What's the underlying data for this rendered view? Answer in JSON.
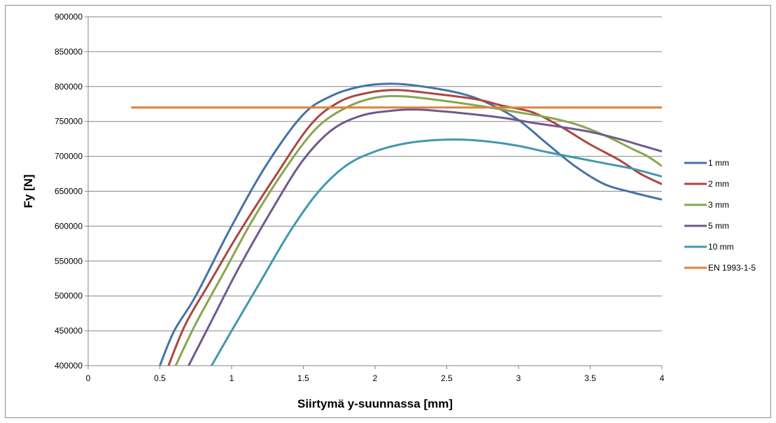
{
  "chart_data": {
    "type": "line",
    "title": "",
    "xlabel": "Siirtymä y-suunnassa [mm]",
    "ylabel": "Fy [N]",
    "xlim": [
      0,
      4
    ],
    "ylim": [
      400000,
      900000
    ],
    "x_ticks": [
      0,
      0.5,
      1,
      1.5,
      2,
      2.5,
      3,
      3.5,
      4
    ],
    "x_tick_labels": [
      "0",
      "0.5",
      "1",
      "1.5",
      "2",
      "2.5",
      "3",
      "3.5",
      "4"
    ],
    "y_ticks": [
      400000,
      450000,
      500000,
      550000,
      600000,
      650000,
      700000,
      750000,
      800000,
      850000,
      900000
    ],
    "y_tick_labels": [
      "400000",
      "450000",
      "500000",
      "550000",
      "600000",
      "650000",
      "700000",
      "750000",
      "800000",
      "850000",
      "900000"
    ],
    "grid": "horizontal",
    "legend_position": "right",
    "series": [
      {
        "name": "1 mm",
        "color": "#4572a7",
        "points": [
          [
            0.5,
            400000
          ],
          [
            0.6,
            450000
          ],
          [
            0.75,
            500000
          ],
          [
            1.0,
            600000
          ],
          [
            1.25,
            690000
          ],
          [
            1.5,
            760000
          ],
          [
            1.7,
            787000
          ],
          [
            1.9,
            800000
          ],
          [
            2.1,
            804000
          ],
          [
            2.3,
            801000
          ],
          [
            2.6,
            790000
          ],
          [
            2.8,
            775000
          ],
          [
            3.0,
            752000
          ],
          [
            3.2,
            718000
          ],
          [
            3.4,
            685000
          ],
          [
            3.6,
            660000
          ],
          [
            3.8,
            648000
          ],
          [
            4.0,
            638000
          ]
        ]
      },
      {
        "name": "2 mm",
        "color": "#aa4643",
        "points": [
          [
            0.56,
            400000
          ],
          [
            0.68,
            460000
          ],
          [
            0.85,
            520000
          ],
          [
            1.05,
            590000
          ],
          [
            1.3,
            670000
          ],
          [
            1.55,
            745000
          ],
          [
            1.75,
            778000
          ],
          [
            1.95,
            791000
          ],
          [
            2.15,
            795000
          ],
          [
            2.4,
            790000
          ],
          [
            2.7,
            782000
          ],
          [
            2.9,
            772000
          ],
          [
            3.1,
            763000
          ],
          [
            3.3,
            742000
          ],
          [
            3.5,
            717000
          ],
          [
            3.7,
            695000
          ],
          [
            3.85,
            675000
          ],
          [
            4.0,
            660000
          ]
        ]
      },
      {
        "name": "3 mm",
        "color": "#89a54e",
        "points": [
          [
            0.61,
            400000
          ],
          [
            0.75,
            460000
          ],
          [
            0.95,
            535000
          ],
          [
            1.15,
            610000
          ],
          [
            1.4,
            690000
          ],
          [
            1.6,
            742000
          ],
          [
            1.8,
            770000
          ],
          [
            2.0,
            784000
          ],
          [
            2.2,
            786000
          ],
          [
            2.5,
            779000
          ],
          [
            2.8,
            770000
          ],
          [
            3.0,
            763000
          ],
          [
            3.2,
            756000
          ],
          [
            3.4,
            746000
          ],
          [
            3.6,
            730000
          ],
          [
            3.8,
            710000
          ],
          [
            3.9,
            700000
          ],
          [
            4.0,
            686000
          ]
        ]
      },
      {
        "name": "5 mm",
        "color": "#71588f",
        "points": [
          [
            0.7,
            400000
          ],
          [
            0.85,
            460000
          ],
          [
            1.05,
            540000
          ],
          [
            1.3,
            630000
          ],
          [
            1.5,
            695000
          ],
          [
            1.7,
            738000
          ],
          [
            1.9,
            758000
          ],
          [
            2.1,
            765000
          ],
          [
            2.3,
            767000
          ],
          [
            2.6,
            762000
          ],
          [
            2.9,
            755000
          ],
          [
            3.1,
            748000
          ],
          [
            3.3,
            742000
          ],
          [
            3.5,
            735000
          ],
          [
            3.7,
            725000
          ],
          [
            3.85,
            716000
          ],
          [
            4.0,
            707000
          ]
        ]
      },
      {
        "name": "10 mm",
        "color": "#4198af",
        "points": [
          [
            0.86,
            400000
          ],
          [
            1.0,
            450000
          ],
          [
            1.2,
            520000
          ],
          [
            1.4,
            590000
          ],
          [
            1.6,
            648000
          ],
          [
            1.8,
            687000
          ],
          [
            2.0,
            707000
          ],
          [
            2.2,
            718000
          ],
          [
            2.4,
            723000
          ],
          [
            2.6,
            724000
          ],
          [
            2.8,
            721000
          ],
          [
            3.0,
            715000
          ],
          [
            3.2,
            706000
          ],
          [
            3.4,
            698000
          ],
          [
            3.6,
            690000
          ],
          [
            3.8,
            682000
          ],
          [
            4.0,
            671000
          ]
        ]
      },
      {
        "name": "EN 1993-1-5",
        "color": "#db843d",
        "points": [
          [
            0.3,
            770000
          ],
          [
            4.0,
            770000
          ]
        ]
      }
    ]
  }
}
